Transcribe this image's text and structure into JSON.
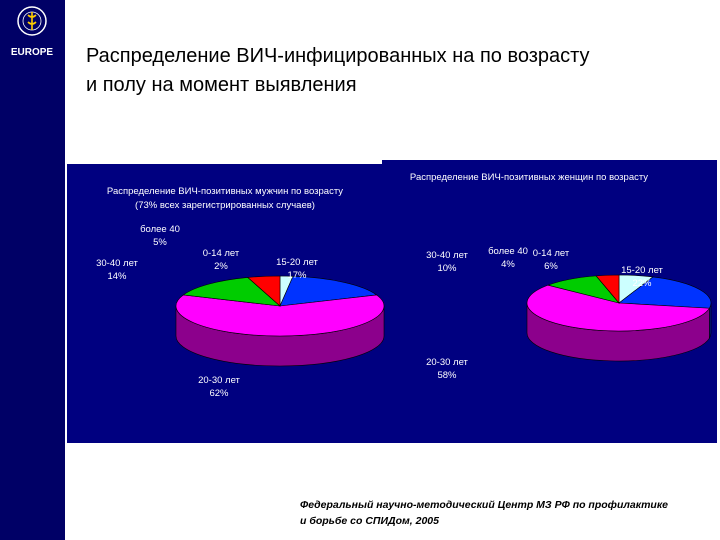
{
  "logo": {
    "text": "EUROPE",
    "colors": {
      "bg": "#000066",
      "fg": "#ffffff",
      "accent": "#ffcc00"
    }
  },
  "slide": {
    "title_line1": "Распределение ВИЧ-инфицированных на по возрасту",
    "title_line2": "и полу на момент выявления",
    "source_line1": "Федеральный научно-методический Центр МЗ РФ по профилактике",
    "source_line2": "и борьбе со СПИДом, 2005"
  },
  "colors": {
    "panel_bg": "#000080",
    "sidebar": "#000066"
  },
  "chart_data": [
    {
      "type": "pie",
      "title_line1": "Распределение ВИЧ-позитивных мужчин по возрасту",
      "title_line2": "(73% всех зарегистрированных случаев)",
      "slices": [
        {
          "label": "0-14 лет",
          "value": 2,
          "pct_label": "2%",
          "color": "#ccffff"
        },
        {
          "label": "15-20 лет",
          "value": 17,
          "pct_label": "17%",
          "color": "#0033ff"
        },
        {
          "label": "20-30 лет",
          "value": 62,
          "pct_label": "62%",
          "color": "#ff00ff"
        },
        {
          "label": "30-40 лет",
          "value": 14,
          "pct_label": "14%",
          "color": "#00cc00"
        },
        {
          "label": "более 40",
          "value": 5,
          "pct_label": "5%",
          "color": "#ff0000"
        }
      ]
    },
    {
      "type": "pie",
      "title_line1": "Распределение ВИЧ-позитивных женщин по возрасту",
      "title_line2": "",
      "slices": [
        {
          "label": "0-14 лет",
          "value": 6,
          "pct_label": "6%",
          "color": "#ccffff"
        },
        {
          "label": "15-20 лет",
          "value": 22,
          "pct_label": "22%",
          "color": "#0033ff"
        },
        {
          "label": "20-30 лет",
          "value": 58,
          "pct_label": "58%",
          "color": "#ff00ff"
        },
        {
          "label": "30-40 лет",
          "value": 10,
          "pct_label": "10%",
          "color": "#00cc00"
        },
        {
          "label": "более 40",
          "value": 4,
          "pct_label": "4%",
          "color": "#ff0000"
        }
      ]
    }
  ]
}
